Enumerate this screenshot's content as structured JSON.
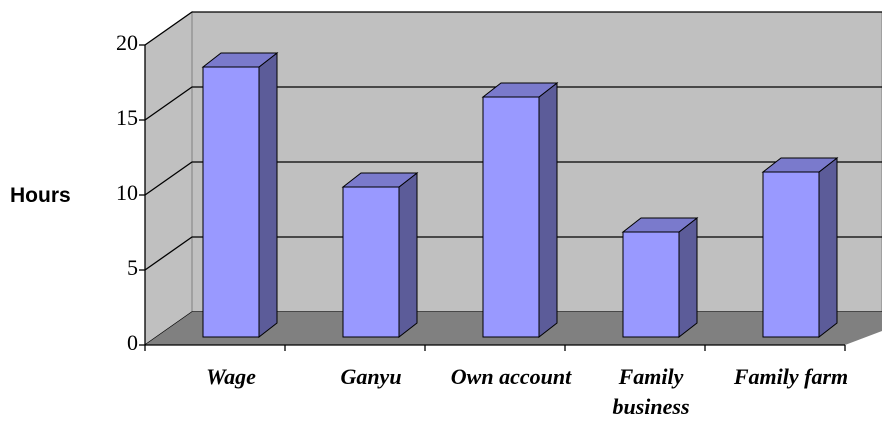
{
  "chart_data": {
    "type": "bar",
    "y_label": "Hours",
    "categories": [
      "Wage",
      "Ganyu",
      "Own account",
      "Family business",
      "Family farm"
    ],
    "values": [
      18,
      10,
      16,
      7,
      11
    ],
    "color": "#9999ff",
    "ylim": [
      0,
      20
    ],
    "yticks": [
      0,
      5,
      10,
      15,
      20
    ],
    "grid": true
  }
}
